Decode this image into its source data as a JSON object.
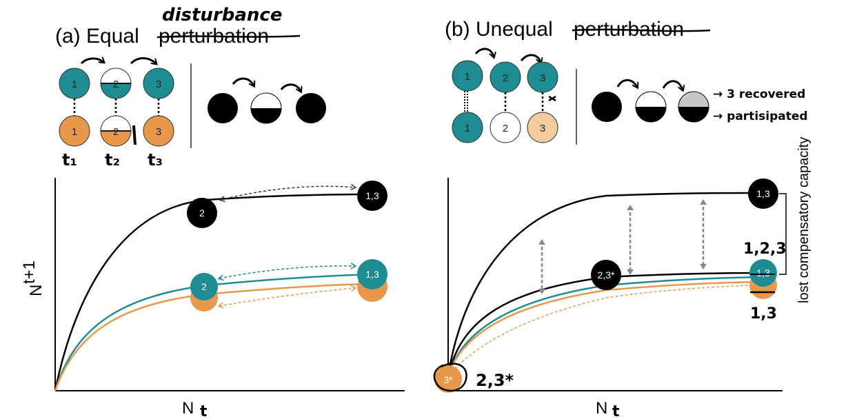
{
  "panel_a": {
    "title_prefix": "(a) Equal",
    "title_struck": "perturbation",
    "annotation": "disturbance",
    "top_nodes": [
      "1",
      "2",
      "3"
    ],
    "bottom_nodes": [
      "1",
      "2",
      "3"
    ],
    "time_labels": [
      "t₁",
      "t₂",
      "t₃"
    ],
    "plot_points": {
      "black_a": "2",
      "black_b": "1,3",
      "teal_a": "2",
      "teal_b": "1,3"
    },
    "xlabel": "N",
    "xlabel_hand": "t",
    "ylabel": "N",
    "ylabel_sup": "t+1"
  },
  "panel_b": {
    "title_prefix": "(b) Unequal",
    "title_struck": "perturbation",
    "top_nodes": [
      "1",
      "2",
      "3"
    ],
    "bottom_nodes": [
      "1",
      "2",
      "3"
    ],
    "annotation_line1": "→ 3 recovered",
    "annotation_line2": "→ partisipated",
    "plot_points": {
      "black_top": "1,3",
      "black_mid": "2,3*",
      "teal_end": "1,3",
      "orange_origin": "3*"
    },
    "hand_right_top": "1,2,3",
    "hand_right_bottom": "1,3",
    "hand_origin": "2,3*",
    "side_label": "lost compensatory capacity",
    "xlabel": "N",
    "xlabel_hand": "t"
  },
  "colors": {
    "teal": "#1e8c93",
    "orange": "#e8984a",
    "light_orange": "#f3cba0",
    "black": "#000000",
    "gray": "#c8c8c8"
  }
}
